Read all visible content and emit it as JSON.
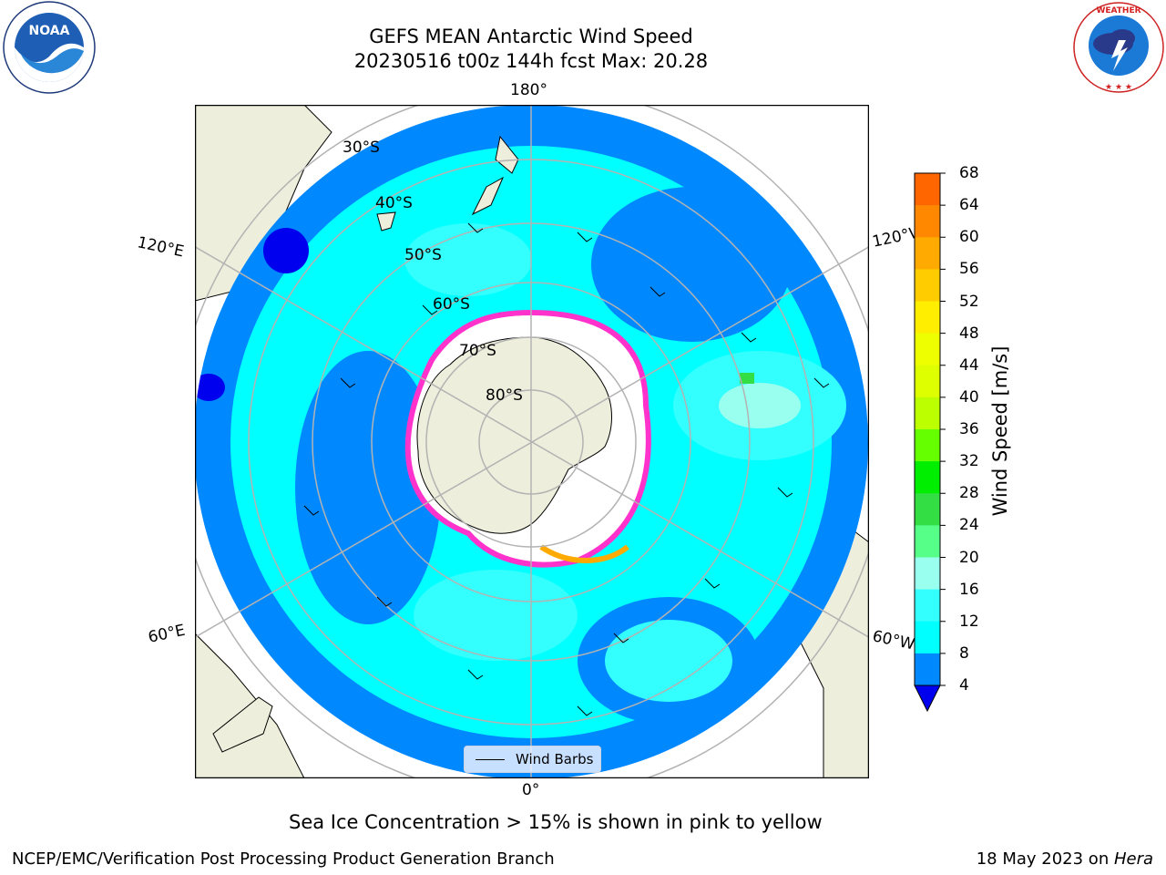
{
  "title": {
    "line1": "GEFS MEAN Antarctic Wind Speed",
    "line2": "20230516 t00z 144h fcst   Max: 20.28"
  },
  "logos": {
    "left": {
      "icon": "noaa-logo",
      "text": "NOAA"
    },
    "right": {
      "icon": "nws-logo",
      "text": "NATIONAL WEATHER SERVICE"
    }
  },
  "map": {
    "projection": "south-polar-stereographic",
    "longitude_labels": {
      "top": "180°",
      "bottom": "0°",
      "upper_left": "120°E",
      "upper_right": "120°W",
      "lower_left": "60°E",
      "lower_right": "60°W"
    },
    "latitude_labels": [
      "30°S",
      "40°S",
      "50°S",
      "60°S",
      "70°S",
      "80°S"
    ],
    "colors": {
      "land": "#eeeedc",
      "sea_ice": "#ffffff",
      "ice_edge": "#ff33cc",
      "grid": "#b3b3b3"
    }
  },
  "colorbar": {
    "label": "Wind Speed [m/s]",
    "ticks": [
      "68",
      "64",
      "60",
      "56",
      "52",
      "48",
      "44",
      "40",
      "36",
      "32",
      "28",
      "24",
      "20",
      "16",
      "12",
      "8",
      "4"
    ],
    "colors": [
      "#ff0000",
      "#ff3300",
      "#ff6600",
      "#ff8800",
      "#ffaa00",
      "#ffcc00",
      "#ffee00",
      "#eeff00",
      "#ddff00",
      "#bbff00",
      "#66ff00",
      "#00ee00",
      "#33dd44",
      "#55ff88",
      "#99ffee",
      "#33ffff",
      "#00ffff",
      "#0088ff"
    ],
    "extend_color": "#0000ee"
  },
  "legend": {
    "label": "Wind Barbs"
  },
  "footnote": "Sea Ice Concentration > 15% is shown in pink to yellow",
  "credits": {
    "left": "NCEP/EMC/Verification Post Processing Product Generation Branch",
    "right_date": "18 May 2023 on ",
    "right_machine": "Hera"
  }
}
